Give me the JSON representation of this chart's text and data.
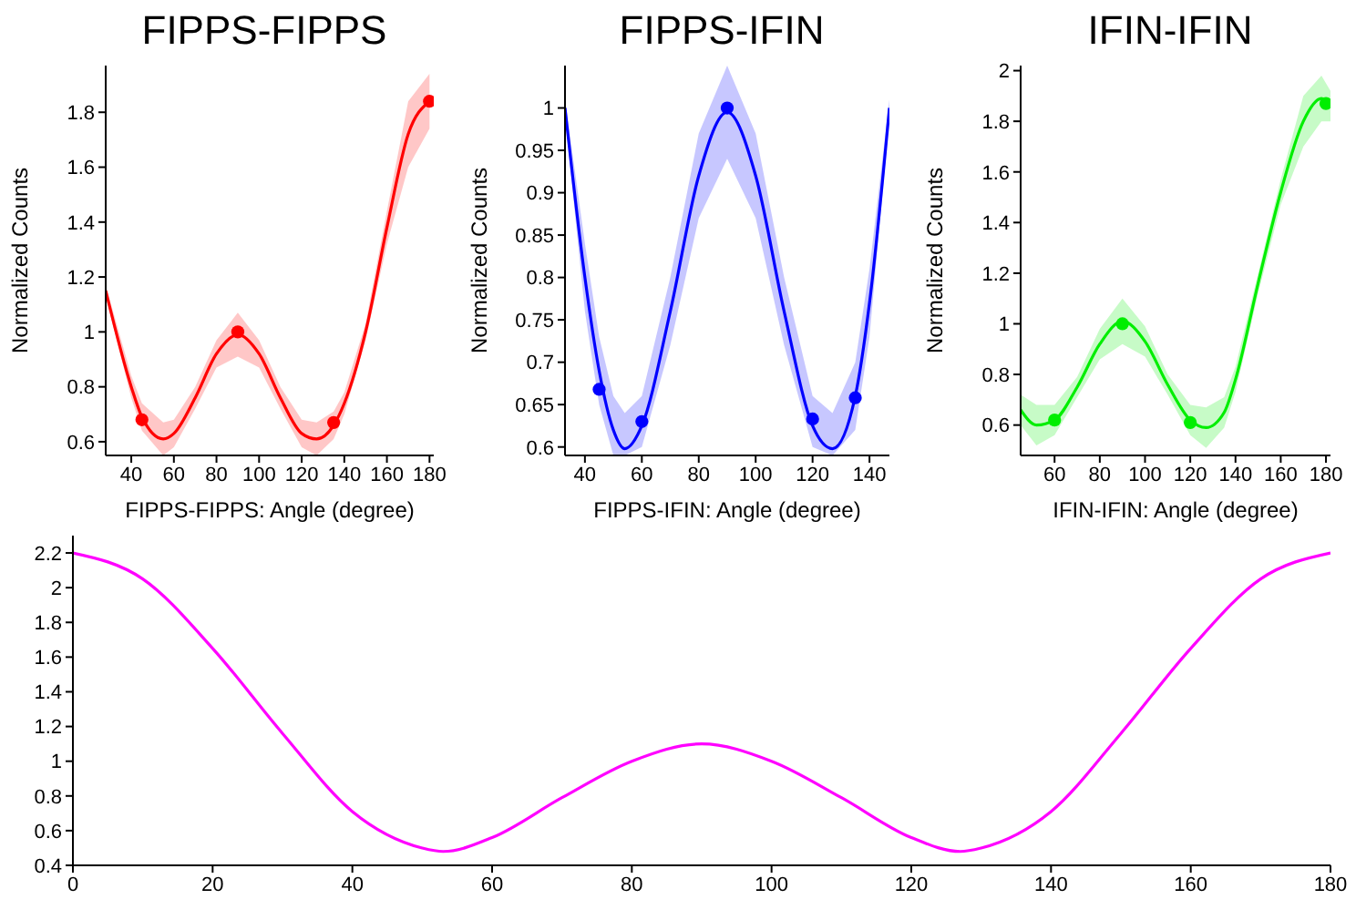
{
  "chart_data": [
    {
      "type": "scatter",
      "title": "FIPPS-FIPPS",
      "xlabel": "FIPPS-FIPPS: Angle (degree)",
      "ylabel": "Normalized Counts",
      "xlim": [
        28,
        182
      ],
      "xticks": [
        40,
        60,
        80,
        100,
        120,
        140,
        160,
        180
      ],
      "ylim": [
        0.55,
        1.97
      ],
      "yticks": [
        0.6,
        0.8,
        1,
        1.2,
        1.4,
        1.6,
        1.8
      ],
      "grid": false,
      "legend": false,
      "marker": "circle",
      "series": [
        {
          "type": "line",
          "color": "#ff0000",
          "marker": "none",
          "line_style": "solid",
          "x": [
            28,
            40,
            45,
            55,
            60,
            70,
            80,
            90,
            100,
            110,
            120,
            127,
            135,
            140,
            150,
            160,
            170,
            180
          ],
          "values": [
            1.15,
            0.8,
            0.69,
            0.61,
            0.63,
            0.76,
            0.92,
            0.99,
            0.92,
            0.76,
            0.63,
            0.61,
            0.66,
            0.74,
            1.0,
            1.38,
            1.72,
            1.84
          ],
          "lower": [
            1.13,
            0.76,
            0.64,
            0.55,
            0.58,
            0.72,
            0.87,
            0.91,
            0.87,
            0.72,
            0.58,
            0.55,
            0.61,
            0.7,
            0.97,
            1.32,
            1.6,
            1.74
          ],
          "upper": [
            1.17,
            0.84,
            0.74,
            0.67,
            0.68,
            0.8,
            0.97,
            1.07,
            0.97,
            0.8,
            0.68,
            0.67,
            0.71,
            0.78,
            1.03,
            1.44,
            1.84,
            1.94
          ]
        },
        {
          "type": "scatter",
          "color": "#ff0000",
          "x": [
            45,
            90,
            135,
            180
          ],
          "values": [
            0.68,
            1.0,
            0.67,
            1.84
          ]
        }
      ]
    },
    {
      "type": "scatter",
      "title": "FIPPS-IFIN",
      "xlabel": "FIPPS-IFIN: Angle (degree)",
      "ylabel": "Normalized Counts",
      "xlim": [
        33,
        147
      ],
      "xticks": [
        40,
        60,
        80,
        100,
        120,
        140
      ],
      "ylim": [
        0.59,
        1.05
      ],
      "yticks": [
        0.6,
        0.65,
        0.7,
        0.75,
        0.8,
        0.85,
        0.9,
        0.95,
        1
      ],
      "grid": false,
      "legend": false,
      "marker": "circle",
      "series": [
        {
          "type": "line",
          "color": "#0000ff",
          "marker": "none",
          "line_style": "solid",
          "x": [
            33,
            40,
            45,
            50,
            54,
            60,
            70,
            80,
            90,
            100,
            110,
            120,
            127,
            135,
            140,
            147
          ],
          "values": [
            1.0,
            0.8,
            0.69,
            0.62,
            0.598,
            0.625,
            0.76,
            0.92,
            0.995,
            0.92,
            0.76,
            0.625,
            0.598,
            0.66,
            0.77,
            1.0
          ],
          "lower": [
            0.99,
            0.76,
            0.65,
            0.59,
            0.59,
            0.6,
            0.72,
            0.87,
            0.94,
            0.87,
            0.72,
            0.6,
            0.59,
            0.62,
            0.73,
            0.99
          ],
          "upper": [
            1.01,
            0.84,
            0.73,
            0.66,
            0.64,
            0.66,
            0.8,
            0.97,
            1.05,
            0.97,
            0.8,
            0.66,
            0.64,
            0.7,
            0.81,
            1.01
          ]
        },
        {
          "type": "scatter",
          "color": "#0000ff",
          "x": [
            45,
            60,
            90,
            120,
            135
          ],
          "values": [
            0.668,
            0.63,
            1.0,
            0.633,
            0.658
          ]
        }
      ]
    },
    {
      "type": "scatter",
      "title": "IFIN-IFIN",
      "xlabel": "IFIN-IFIN: Angle (degree)",
      "ylabel": "Normalized Counts",
      "xlim": [
        45,
        182
      ],
      "xticks": [
        60,
        80,
        100,
        120,
        140,
        160,
        180
      ],
      "ylim": [
        0.48,
        2.02
      ],
      "yticks": [
        0.6,
        0.8,
        1,
        1.2,
        1.4,
        1.6,
        1.8,
        2
      ],
      "grid": false,
      "legend": false,
      "marker": "circle",
      "series": [
        {
          "type": "line",
          "color": "#00ee00",
          "marker": "none",
          "line_style": "solid",
          "x": [
            45,
            52,
            60,
            70,
            80,
            90,
            100,
            110,
            120,
            127,
            135,
            140,
            150,
            160,
            170,
            178,
            182
          ],
          "values": [
            0.66,
            0.6,
            0.62,
            0.75,
            0.92,
            1.01,
            0.93,
            0.76,
            0.62,
            0.59,
            0.65,
            0.78,
            1.16,
            1.52,
            1.8,
            1.89,
            1.86
          ],
          "lower": [
            0.6,
            0.52,
            0.56,
            0.71,
            0.86,
            0.92,
            0.87,
            0.72,
            0.56,
            0.51,
            0.59,
            0.73,
            1.12,
            1.47,
            1.7,
            1.8,
            1.8
          ],
          "upper": [
            0.72,
            0.68,
            0.68,
            0.79,
            0.98,
            1.1,
            0.99,
            0.8,
            0.68,
            0.67,
            0.71,
            0.83,
            1.2,
            1.57,
            1.9,
            1.98,
            1.92
          ]
        },
        {
          "type": "scatter",
          "color": "#00ee00",
          "x": [
            60,
            90,
            120,
            180
          ],
          "values": [
            0.62,
            1.0,
            0.61,
            1.87
          ]
        }
      ]
    },
    {
      "type": "line",
      "xlim": [
        0,
        180
      ],
      "xticks": [
        0,
        20,
        40,
        60,
        80,
        100,
        120,
        140,
        160,
        180
      ],
      "ylim": [
        0.4,
        2.3
      ],
      "yticks": [
        0.4,
        0.6,
        0.8,
        1,
        1.2,
        1.4,
        1.6,
        1.8,
        2,
        2.2
      ],
      "grid": false,
      "legend": false,
      "marker": "none",
      "line_style": "solid",
      "series": [
        {
          "color": "#ff00ff",
          "x": [
            0,
            10,
            20,
            30,
            40,
            50,
            53,
            60,
            70,
            80,
            90,
            100,
            110,
            120,
            127,
            130,
            140,
            150,
            160,
            170,
            180
          ],
          "values": [
            2.2,
            2.05,
            1.65,
            1.16,
            0.71,
            0.5,
            0.48,
            0.56,
            0.79,
            1.0,
            1.1,
            1.0,
            0.79,
            0.56,
            0.48,
            0.5,
            0.71,
            1.16,
            1.65,
            2.05,
            2.2
          ]
        }
      ]
    }
  ]
}
